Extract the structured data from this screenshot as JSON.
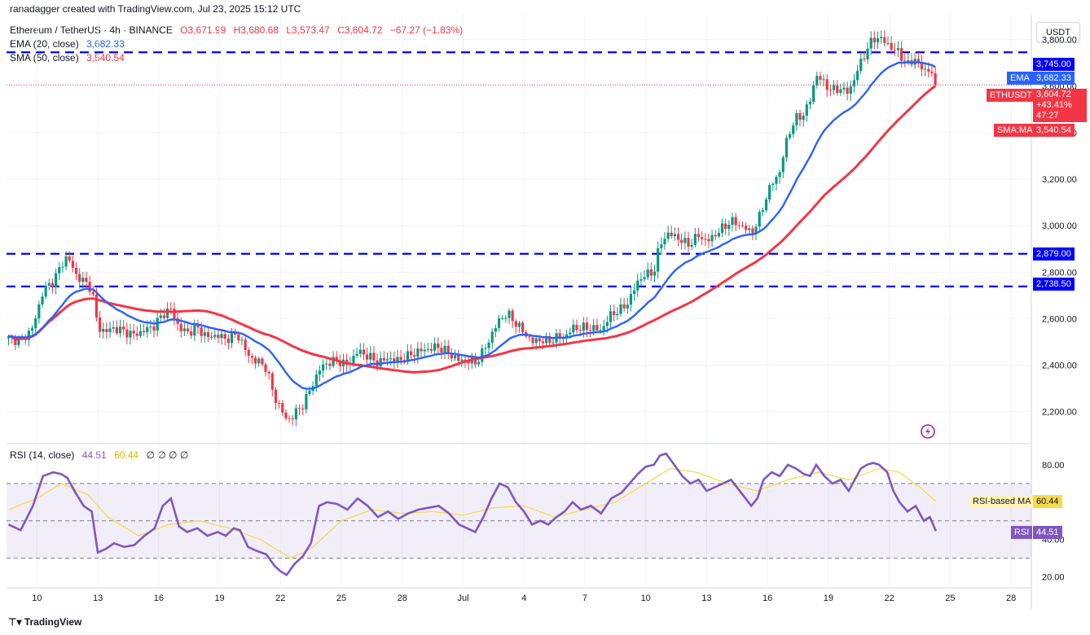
{
  "attribution": "ranadagger created with TradingView.com, Jul 23, 2025 15:12 UTC",
  "legend": {
    "symbol": "Ethereum / TetherUS · 4h · BINANCE",
    "open": "O3,671.99",
    "high": "H3,680.68",
    "low": "L3,573.47",
    "close": "C3,604.72",
    "change": "−67.27 (−1.83%)",
    "ema_label": "EMA (20, close)",
    "ema_value": "3,682.33",
    "sma_label": "SMA (50, close)",
    "sma_value": "3,540.54",
    "rsi_label": "RSI (14, close)",
    "rsi_value": "44.51",
    "rsi_ma_value": "60.44",
    "rsi_extra": "∅ ∅ ∅ ∅"
  },
  "unit": "USDT",
  "footer_logo": "TradingView",
  "tags": {
    "resistance_upper": "3,745.00",
    "ema_tag": "EMA",
    "ema_value": "3,682.33",
    "symbol_tag": "ETHUSDT",
    "price": "3,604.72",
    "pct": "+43.41%",
    "countdown": "47:27",
    "sma_tag": "SMA:MA",
    "sma_value": "3,540.54",
    "support_2879": "2,879.00",
    "support_2738": "2,738.50",
    "rsi_ma_tag": "RSI-based MA",
    "rsi_ma_value": "60.44",
    "rsi_tag": "RSI",
    "rsi_value": "44.51"
  },
  "colors": {
    "up": "#089981",
    "down": "#f23645",
    "ema": "#2962ff",
    "sma": "#f23645",
    "rsi": "#7e57c2",
    "rsi_ma": "#f7d94c",
    "level_line": "#0000ff",
    "axis_text": "#131722"
  },
  "chart_data": [
    {
      "type": "candlestick",
      "title": "Ethereum / TetherUS · 4h · BINANCE",
      "ylabel": "USDT",
      "ylim": [
        2080,
        3900
      ],
      "y_ticks": [
        "3,800.00",
        "3,600.00",
        "3,400.00",
        "3,200.00",
        "3,000.00",
        "2,800.00",
        "2,600.00",
        "2,400.00",
        "2,200.00"
      ],
      "y_tick_values": [
        3800,
        3600,
        3400,
        3200,
        3000,
        2800,
        2600,
        2400,
        2200
      ],
      "x_ticks": [
        "10",
        "13",
        "16",
        "19",
        "22",
        "25",
        "28",
        "Jul",
        "4",
        "7",
        "10",
        "13",
        "16",
        "19",
        "22",
        "25",
        "28"
      ],
      "x_tick_days": [
        10,
        13,
        16,
        19,
        22,
        25,
        28,
        31,
        34,
        37,
        40,
        43,
        46,
        49,
        52,
        55,
        58
      ],
      "x_range_days": [
        8.5,
        59.0
      ],
      "horizontal_levels": [
        3745.0,
        2879.0,
        2738.5
      ],
      "close_path": [
        [
          8.6,
          2515
        ],
        [
          9.2,
          2505
        ],
        [
          9.8,
          2560
        ],
        [
          10.3,
          2720
        ],
        [
          10.8,
          2760
        ],
        [
          11.2,
          2830
        ],
        [
          11.5,
          2870
        ],
        [
          11.9,
          2790
        ],
        [
          12.3,
          2760
        ],
        [
          12.7,
          2730
        ],
        [
          13.0,
          2560
        ],
        [
          13.4,
          2545
        ],
        [
          13.8,
          2560
        ],
        [
          14.3,
          2545
        ],
        [
          14.8,
          2530
        ],
        [
          15.3,
          2550
        ],
        [
          15.8,
          2570
        ],
        [
          16.2,
          2620
        ],
        [
          16.6,
          2640
        ],
        [
          17.0,
          2560
        ],
        [
          17.4,
          2540
        ],
        [
          17.9,
          2560
        ],
        [
          18.4,
          2520
        ],
        [
          18.9,
          2530
        ],
        [
          19.3,
          2510
        ],
        [
          19.7,
          2530
        ],
        [
          20.0,
          2520
        ],
        [
          20.4,
          2440
        ],
        [
          20.8,
          2420
        ],
        [
          21.3,
          2390
        ],
        [
          21.7,
          2260
        ],
        [
          22.0,
          2220
        ],
        [
          22.3,
          2160
        ],
        [
          22.7,
          2190
        ],
        [
          23.1,
          2230
        ],
        [
          23.5,
          2300
        ],
        [
          23.9,
          2380
        ],
        [
          24.3,
          2410
        ],
        [
          24.8,
          2420
        ],
        [
          25.3,
          2400
        ],
        [
          25.8,
          2460
        ],
        [
          26.3,
          2440
        ],
        [
          26.8,
          2410
        ],
        [
          27.3,
          2430
        ],
        [
          27.8,
          2420
        ],
        [
          28.3,
          2440
        ],
        [
          28.8,
          2460
        ],
        [
          29.3,
          2470
        ],
        [
          29.8,
          2480
        ],
        [
          30.3,
          2450
        ],
        [
          30.8,
          2420
        ],
        [
          31.2,
          2420
        ],
        [
          31.6,
          2410
        ],
        [
          32.0,
          2460
        ],
        [
          32.4,
          2530
        ],
        [
          32.8,
          2600
        ],
        [
          33.2,
          2620
        ],
        [
          33.6,
          2580
        ],
        [
          34.0,
          2540
        ],
        [
          34.4,
          2500
        ],
        [
          34.8,
          2510
        ],
        [
          35.2,
          2500
        ],
        [
          35.6,
          2520
        ],
        [
          36.0,
          2520
        ],
        [
          36.4,
          2560
        ],
        [
          36.8,
          2560
        ],
        [
          37.3,
          2560
        ],
        [
          37.8,
          2550
        ],
        [
          38.3,
          2620
        ],
        [
          38.8,
          2640
        ],
        [
          39.2,
          2680
        ],
        [
          39.6,
          2760
        ],
        [
          40.0,
          2790
        ],
        [
          40.4,
          2800
        ],
        [
          40.7,
          2920
        ],
        [
          41.0,
          2960
        ],
        [
          41.4,
          2960
        ],
        [
          41.8,
          2930
        ],
        [
          42.2,
          2920
        ],
        [
          42.6,
          2960
        ],
        [
          43.0,
          2930
        ],
        [
          43.4,
          2960
        ],
        [
          43.8,
          2990
        ],
        [
          44.2,
          3020
        ],
        [
          44.7,
          3000
        ],
        [
          45.2,
          2970
        ],
        [
          45.5,
          3010
        ],
        [
          45.8,
          3090
        ],
        [
          46.2,
          3180
        ],
        [
          46.6,
          3230
        ],
        [
          47.0,
          3390
        ],
        [
          47.4,
          3460
        ],
        [
          47.8,
          3480
        ],
        [
          48.1,
          3540
        ],
        [
          48.4,
          3650
        ],
        [
          48.8,
          3610
        ],
        [
          49.2,
          3580
        ],
        [
          49.6,
          3590
        ],
        [
          50.0,
          3570
        ],
        [
          50.3,
          3640
        ],
        [
          50.6,
          3700
        ],
        [
          50.9,
          3760
        ],
        [
          51.2,
          3800
        ],
        [
          51.5,
          3810
        ],
        [
          51.9,
          3780
        ],
        [
          52.2,
          3760
        ],
        [
          52.5,
          3740
        ],
        [
          52.9,
          3690
        ],
        [
          53.3,
          3720
        ],
        [
          53.7,
          3660
        ],
        [
          54.0,
          3680
        ],
        [
          54.3,
          3605
        ]
      ]
    },
    {
      "type": "line",
      "ylabel": "",
      "ylim": [
        15,
        90
      ],
      "y_ticks": [
        "80.00",
        "40.00",
        "20.00"
      ],
      "y_tick_values": [
        80,
        40,
        20
      ],
      "bands": [
        70,
        50,
        30
      ],
      "series": [
        {
          "name": "RSI",
          "points": [
            [
              8.6,
              48
            ],
            [
              9.2,
              45
            ],
            [
              9.8,
              58
            ],
            [
              10.3,
              74
            ],
            [
              10.8,
              76
            ],
            [
              11.2,
              75
            ],
            [
              11.5,
              73
            ],
            [
              11.9,
              65
            ],
            [
              12.3,
              58
            ],
            [
              12.7,
              55
            ],
            [
              13.0,
              33
            ],
            [
              13.4,
              35
            ],
            [
              13.8,
              38
            ],
            [
              14.3,
              36
            ],
            [
              14.8,
              37
            ],
            [
              15.3,
              42
            ],
            [
              15.8,
              46
            ],
            [
              16.2,
              58
            ],
            [
              16.6,
              62
            ],
            [
              17.0,
              47
            ],
            [
              17.4,
              44
            ],
            [
              17.9,
              46
            ],
            [
              18.4,
              42
            ],
            [
              18.9,
              44
            ],
            [
              19.3,
              42
            ],
            [
              19.7,
              46
            ],
            [
              20.0,
              45
            ],
            [
              20.4,
              36
            ],
            [
              20.8,
              34
            ],
            [
              21.3,
              32
            ],
            [
              21.7,
              26
            ],
            [
              22.0,
              23
            ],
            [
              22.3,
              21
            ],
            [
              22.7,
              27
            ],
            [
              23.1,
              31
            ],
            [
              23.5,
              38
            ],
            [
              23.9,
              58
            ],
            [
              24.3,
              60
            ],
            [
              24.8,
              59
            ],
            [
              25.3,
              56
            ],
            [
              25.8,
              62
            ],
            [
              26.3,
              58
            ],
            [
              26.8,
              52
            ],
            [
              27.3,
              55
            ],
            [
              27.8,
              51
            ],
            [
              28.3,
              54
            ],
            [
              28.8,
              56
            ],
            [
              29.3,
              57
            ],
            [
              29.8,
              58
            ],
            [
              30.3,
              54
            ],
            [
              30.8,
              48
            ],
            [
              31.2,
              46
            ],
            [
              31.6,
              44
            ],
            [
              32.0,
              52
            ],
            [
              32.4,
              62
            ],
            [
              32.8,
              70
            ],
            [
              33.2,
              68
            ],
            [
              33.6,
              60
            ],
            [
              34.0,
              55
            ],
            [
              34.4,
              48
            ],
            [
              34.8,
              50
            ],
            [
              35.2,
              48
            ],
            [
              35.6,
              52
            ],
            [
              36.0,
              55
            ],
            [
              36.4,
              60
            ],
            [
              36.8,
              56
            ],
            [
              37.3,
              58
            ],
            [
              37.8,
              54
            ],
            [
              38.3,
              62
            ],
            [
              38.8,
              65
            ],
            [
              39.2,
              70
            ],
            [
              39.6,
              75
            ],
            [
              40.0,
              79
            ],
            [
              40.4,
              80
            ],
            [
              40.7,
              85
            ],
            [
              41.0,
              86
            ],
            [
              41.4,
              80
            ],
            [
              41.8,
              74
            ],
            [
              42.2,
              70
            ],
            [
              42.6,
              72
            ],
            [
              43.0,
              66
            ],
            [
              43.4,
              68
            ],
            [
              43.8,
              70
            ],
            [
              44.2,
              72
            ],
            [
              44.7,
              65
            ],
            [
              45.2,
              58
            ],
            [
              45.5,
              62
            ],
            [
              45.8,
              72
            ],
            [
              46.2,
              76
            ],
            [
              46.6,
              74
            ],
            [
              47.0,
              80
            ],
            [
              47.4,
              78
            ],
            [
              47.8,
              75
            ],
            [
              48.1,
              74
            ],
            [
              48.4,
              80
            ],
            [
              48.8,
              74
            ],
            [
              49.2,
              70
            ],
            [
              49.6,
              72
            ],
            [
              50.0,
              66
            ],
            [
              50.3,
              72
            ],
            [
              50.6,
              78
            ],
            [
              50.9,
              80
            ],
            [
              51.2,
              81
            ],
            [
              51.5,
              80
            ],
            [
              51.9,
              76
            ],
            [
              52.2,
              66
            ],
            [
              52.5,
              60
            ],
            [
              52.9,
              55
            ],
            [
              53.3,
              58
            ],
            [
              53.7,
              50
            ],
            [
              54.0,
              52
            ],
            [
              54.3,
              44.51
            ]
          ]
        },
        {
          "name": "RSI-based MA",
          "points": [
            [
              8.6,
              56
            ],
            [
              10.0,
              62
            ],
            [
              11.2,
              70
            ],
            [
              12.5,
              64
            ],
            [
              13.5,
              52
            ],
            [
              15.0,
              42
            ],
            [
              16.5,
              48
            ],
            [
              18.0,
              50
            ],
            [
              19.5,
              46
            ],
            [
              21.0,
              40
            ],
            [
              22.5,
              30
            ],
            [
              23.5,
              35
            ],
            [
              25.0,
              50
            ],
            [
              26.5,
              56
            ],
            [
              28.0,
              54
            ],
            [
              29.5,
              55
            ],
            [
              31.0,
              53
            ],
            [
              32.5,
              57
            ],
            [
              34.0,
              58
            ],
            [
              35.5,
              52
            ],
            [
              37.0,
              56
            ],
            [
              38.5,
              60
            ],
            [
              40.0,
              70
            ],
            [
              41.2,
              78
            ],
            [
              42.5,
              76
            ],
            [
              44.0,
              70
            ],
            [
              45.5,
              66
            ],
            [
              47.0,
              72
            ],
            [
              48.5,
              76
            ],
            [
              50.0,
              72
            ],
            [
              51.5,
              78
            ],
            [
              52.5,
              76
            ],
            [
              53.5,
              68
            ],
            [
              54.3,
              60.44
            ]
          ]
        }
      ]
    }
  ]
}
